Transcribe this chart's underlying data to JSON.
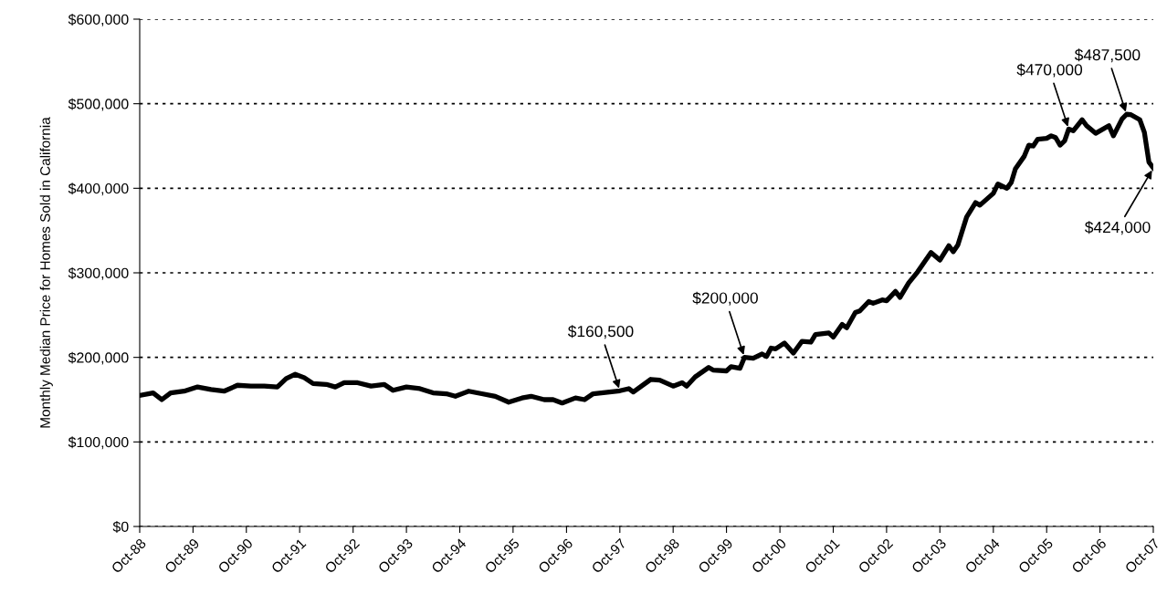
{
  "chart_data": {
    "type": "line",
    "ylabel": "Monthly Median Price for Homes Sold in California",
    "x": [
      "1988-10",
      "1989-01",
      "1989-03",
      "1989-05",
      "1989-08",
      "1989-11",
      "1990-02",
      "1990-05",
      "1990-08",
      "1990-11",
      "1991-02",
      "1991-05",
      "1991-07",
      "1991-09",
      "1991-11",
      "1992-01",
      "1992-04",
      "1992-06",
      "1992-08",
      "1992-11",
      "1993-02",
      "1993-05",
      "1993-07",
      "1993-10",
      "1994-01",
      "1994-04",
      "1994-07",
      "1994-09",
      "1994-12",
      "1995-03",
      "1995-06",
      "1995-09",
      "1995-12",
      "1996-02",
      "1996-05",
      "1996-07",
      "1996-09",
      "1996-12",
      "1997-02",
      "1997-04",
      "1997-10",
      "1997-12",
      "1998-01",
      "1998-05",
      "1998-07",
      "1998-10",
      "1998-12",
      "1999-01",
      "1999-03",
      "1999-06",
      "1999-07",
      "1999-10",
      "1999-11",
      "2000-01",
      "2000-02",
      "2000-04",
      "2000-06",
      "2000-07",
      "2000-08",
      "2000-09",
      "2000-11",
      "2001-01",
      "2001-03",
      "2001-05",
      "2001-06",
      "2001-09",
      "2001-10",
      "2001-12",
      "2002-01",
      "2002-03",
      "2002-04",
      "2002-06",
      "2002-07",
      "2002-09",
      "2002-10",
      "2002-12",
      "2003-01",
      "2003-03",
      "2003-05",
      "2003-08",
      "2003-10",
      "2003-12",
      "2004-01",
      "2004-02",
      "2004-04",
      "2004-06",
      "2004-07",
      "2004-10",
      "2004-11",
      "2005-01",
      "2005-02",
      "2005-03",
      "2005-05",
      "2005-06",
      "2005-07",
      "2005-08",
      "2005-10",
      "2005-11",
      "2005-12",
      "2006-01",
      "2006-02",
      "2006-03",
      "2006-04",
      "2006-06",
      "2006-07",
      "2006-09",
      "2006-12",
      "2007-01",
      "2007-03",
      "2007-04",
      "2007-05",
      "2007-07",
      "2007-08",
      "2007-09",
      "2007-10"
    ],
    "series": [
      {
        "color": "#000000",
        "values": [
          155000,
          158000,
          150000,
          158000,
          160000,
          165000,
          162000,
          160000,
          167000,
          166000,
          166000,
          165000,
          175000,
          180000,
          176000,
          169000,
          168000,
          165000,
          170000,
          170000,
          166000,
          168000,
          161000,
          165000,
          163000,
          158000,
          157000,
          154000,
          160000,
          157000,
          154000,
          147000,
          152000,
          154000,
          150000,
          150000,
          146000,
          152000,
          150000,
          157000,
          160500,
          163000,
          159000,
          174000,
          173000,
          166000,
          170000,
          166000,
          177000,
          188000,
          185000,
          184000,
          189000,
          187000,
          200000,
          199000,
          204000,
          201000,
          211000,
          210000,
          217000,
          205000,
          219000,
          218000,
          227000,
          229000,
          224000,
          239000,
          235000,
          253000,
          255000,
          266000,
          264000,
          268000,
          267000,
          278000,
          271000,
          288000,
          301000,
          324000,
          315000,
          332000,
          325000,
          333000,
          366000,
          383000,
          380000,
          394000,
          405000,
          400000,
          407000,
          423000,
          438000,
          451000,
          450000,
          458000,
          459000,
          462000,
          460000,
          451000,
          456000,
          470000,
          468000,
          481000,
          474000,
          465000,
          474000,
          462000,
          482000,
          487500,
          487000,
          481000,
          466000,
          431000,
          424000
        ]
      }
    ],
    "xlim": [
      "1988-10",
      "2007-10"
    ],
    "xticks": [
      {
        "value": "1988-10",
        "label": "Oct-88"
      },
      {
        "value": "1989-10",
        "label": "Oct-89"
      },
      {
        "value": "1990-10",
        "label": "Oct-90"
      },
      {
        "value": "1991-10",
        "label": "Oct-91"
      },
      {
        "value": "1992-10",
        "label": "Oct-92"
      },
      {
        "value": "1993-10",
        "label": "Oct-93"
      },
      {
        "value": "1994-10",
        "label": "Oct-94"
      },
      {
        "value": "1995-10",
        "label": "Oct-95"
      },
      {
        "value": "1996-10",
        "label": "Oct-96"
      },
      {
        "value": "1997-10",
        "label": "Oct-97"
      },
      {
        "value": "1998-10",
        "label": "Oct-98"
      },
      {
        "value": "1999-10",
        "label": "Oct-99"
      },
      {
        "value": "2000-10",
        "label": "Oct-00"
      },
      {
        "value": "2001-10",
        "label": "Oct-01"
      },
      {
        "value": "2002-10",
        "label": "Oct-02"
      },
      {
        "value": "2003-10",
        "label": "Oct-03"
      },
      {
        "value": "2004-10",
        "label": "Oct-04"
      },
      {
        "value": "2005-10",
        "label": "Oct-05"
      },
      {
        "value": "2006-10",
        "label": "Oct-06"
      },
      {
        "value": "2007-10",
        "label": "Oct-07"
      }
    ],
    "ylim": [
      0,
      600000
    ],
    "yticks": [
      {
        "value": 0,
        "label": "$0"
      },
      {
        "value": 100000,
        "label": "$100,000"
      },
      {
        "value": 200000,
        "label": "$200,000"
      },
      {
        "value": 300000,
        "label": "$300,000"
      },
      {
        "value": 400000,
        "label": "$400,000"
      },
      {
        "value": 500000,
        "label": "$500,000"
      },
      {
        "value": 600000,
        "label": "$600,000"
      }
    ],
    "grid": "y",
    "line_style": "solid",
    "marker": "none",
    "annotations": [
      {
        "text": "$160,500",
        "x": "1997-10",
        "y": 160500
      },
      {
        "text": "$200,000",
        "x": "2000-02",
        "y": 200000
      },
      {
        "text": "$470,000",
        "x": "2006-03",
        "y": 470000
      },
      {
        "text": "$487,500",
        "x": "2007-04",
        "y": 487500
      },
      {
        "text": "$424,000",
        "x": "2007-10",
        "y": 424000
      }
    ]
  }
}
